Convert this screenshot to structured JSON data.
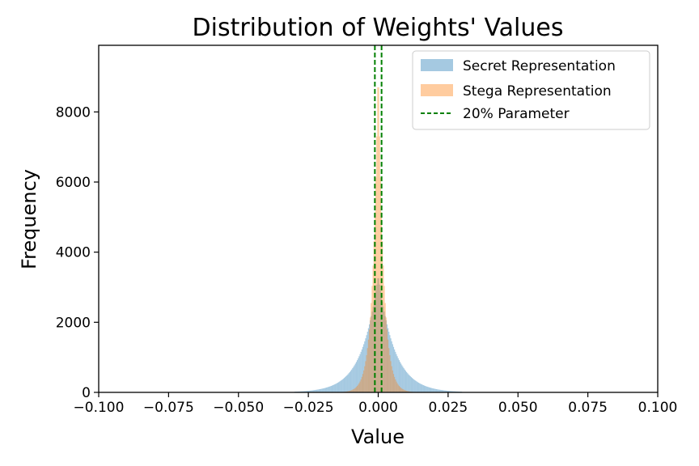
{
  "chart_data": {
    "type": "histogram",
    "title": "Distribution of Weights' Values",
    "xlabel": "Value",
    "ylabel": "Frequency",
    "xlim": [
      -0.1,
      0.1
    ],
    "ylim": [
      0,
      9900
    ],
    "x_ticks": [
      -0.1,
      -0.075,
      -0.05,
      -0.025,
      0.0,
      0.025,
      0.05,
      0.075,
      0.1
    ],
    "x_tick_labels": [
      "−0.100",
      "−0.075",
      "−0.050",
      "−0.025",
      "0.000",
      "0.025",
      "0.050",
      "0.075",
      "0.100"
    ],
    "y_ticks": [
      0,
      2000,
      4000,
      6000,
      8000
    ],
    "y_tick_labels": [
      "0",
      "2000",
      "4000",
      "6000",
      "8000"
    ],
    "grid": false,
    "legend_position": "top-right",
    "series": [
      {
        "name": "Secret Representation",
        "color": "#1f77b4",
        "alpha": 0.4,
        "distribution": "laplace",
        "center": 0.0,
        "scale": 0.0058,
        "peak": 3350,
        "range": [
          -0.03,
          0.03
        ],
        "bins": 180
      },
      {
        "name": "Stega Representation",
        "color": "#ff7f0e",
        "alpha": 0.4,
        "distribution": "laplace",
        "center": 0.0,
        "scale": 0.0019,
        "peak": 9500,
        "range": [
          -0.03,
          0.03
        ],
        "bins": 180
      }
    ],
    "vlines": {
      "name": "20% Parameter",
      "color": "#008000",
      "style": "dashed",
      "x": [
        -0.0012,
        0.0012
      ]
    }
  }
}
